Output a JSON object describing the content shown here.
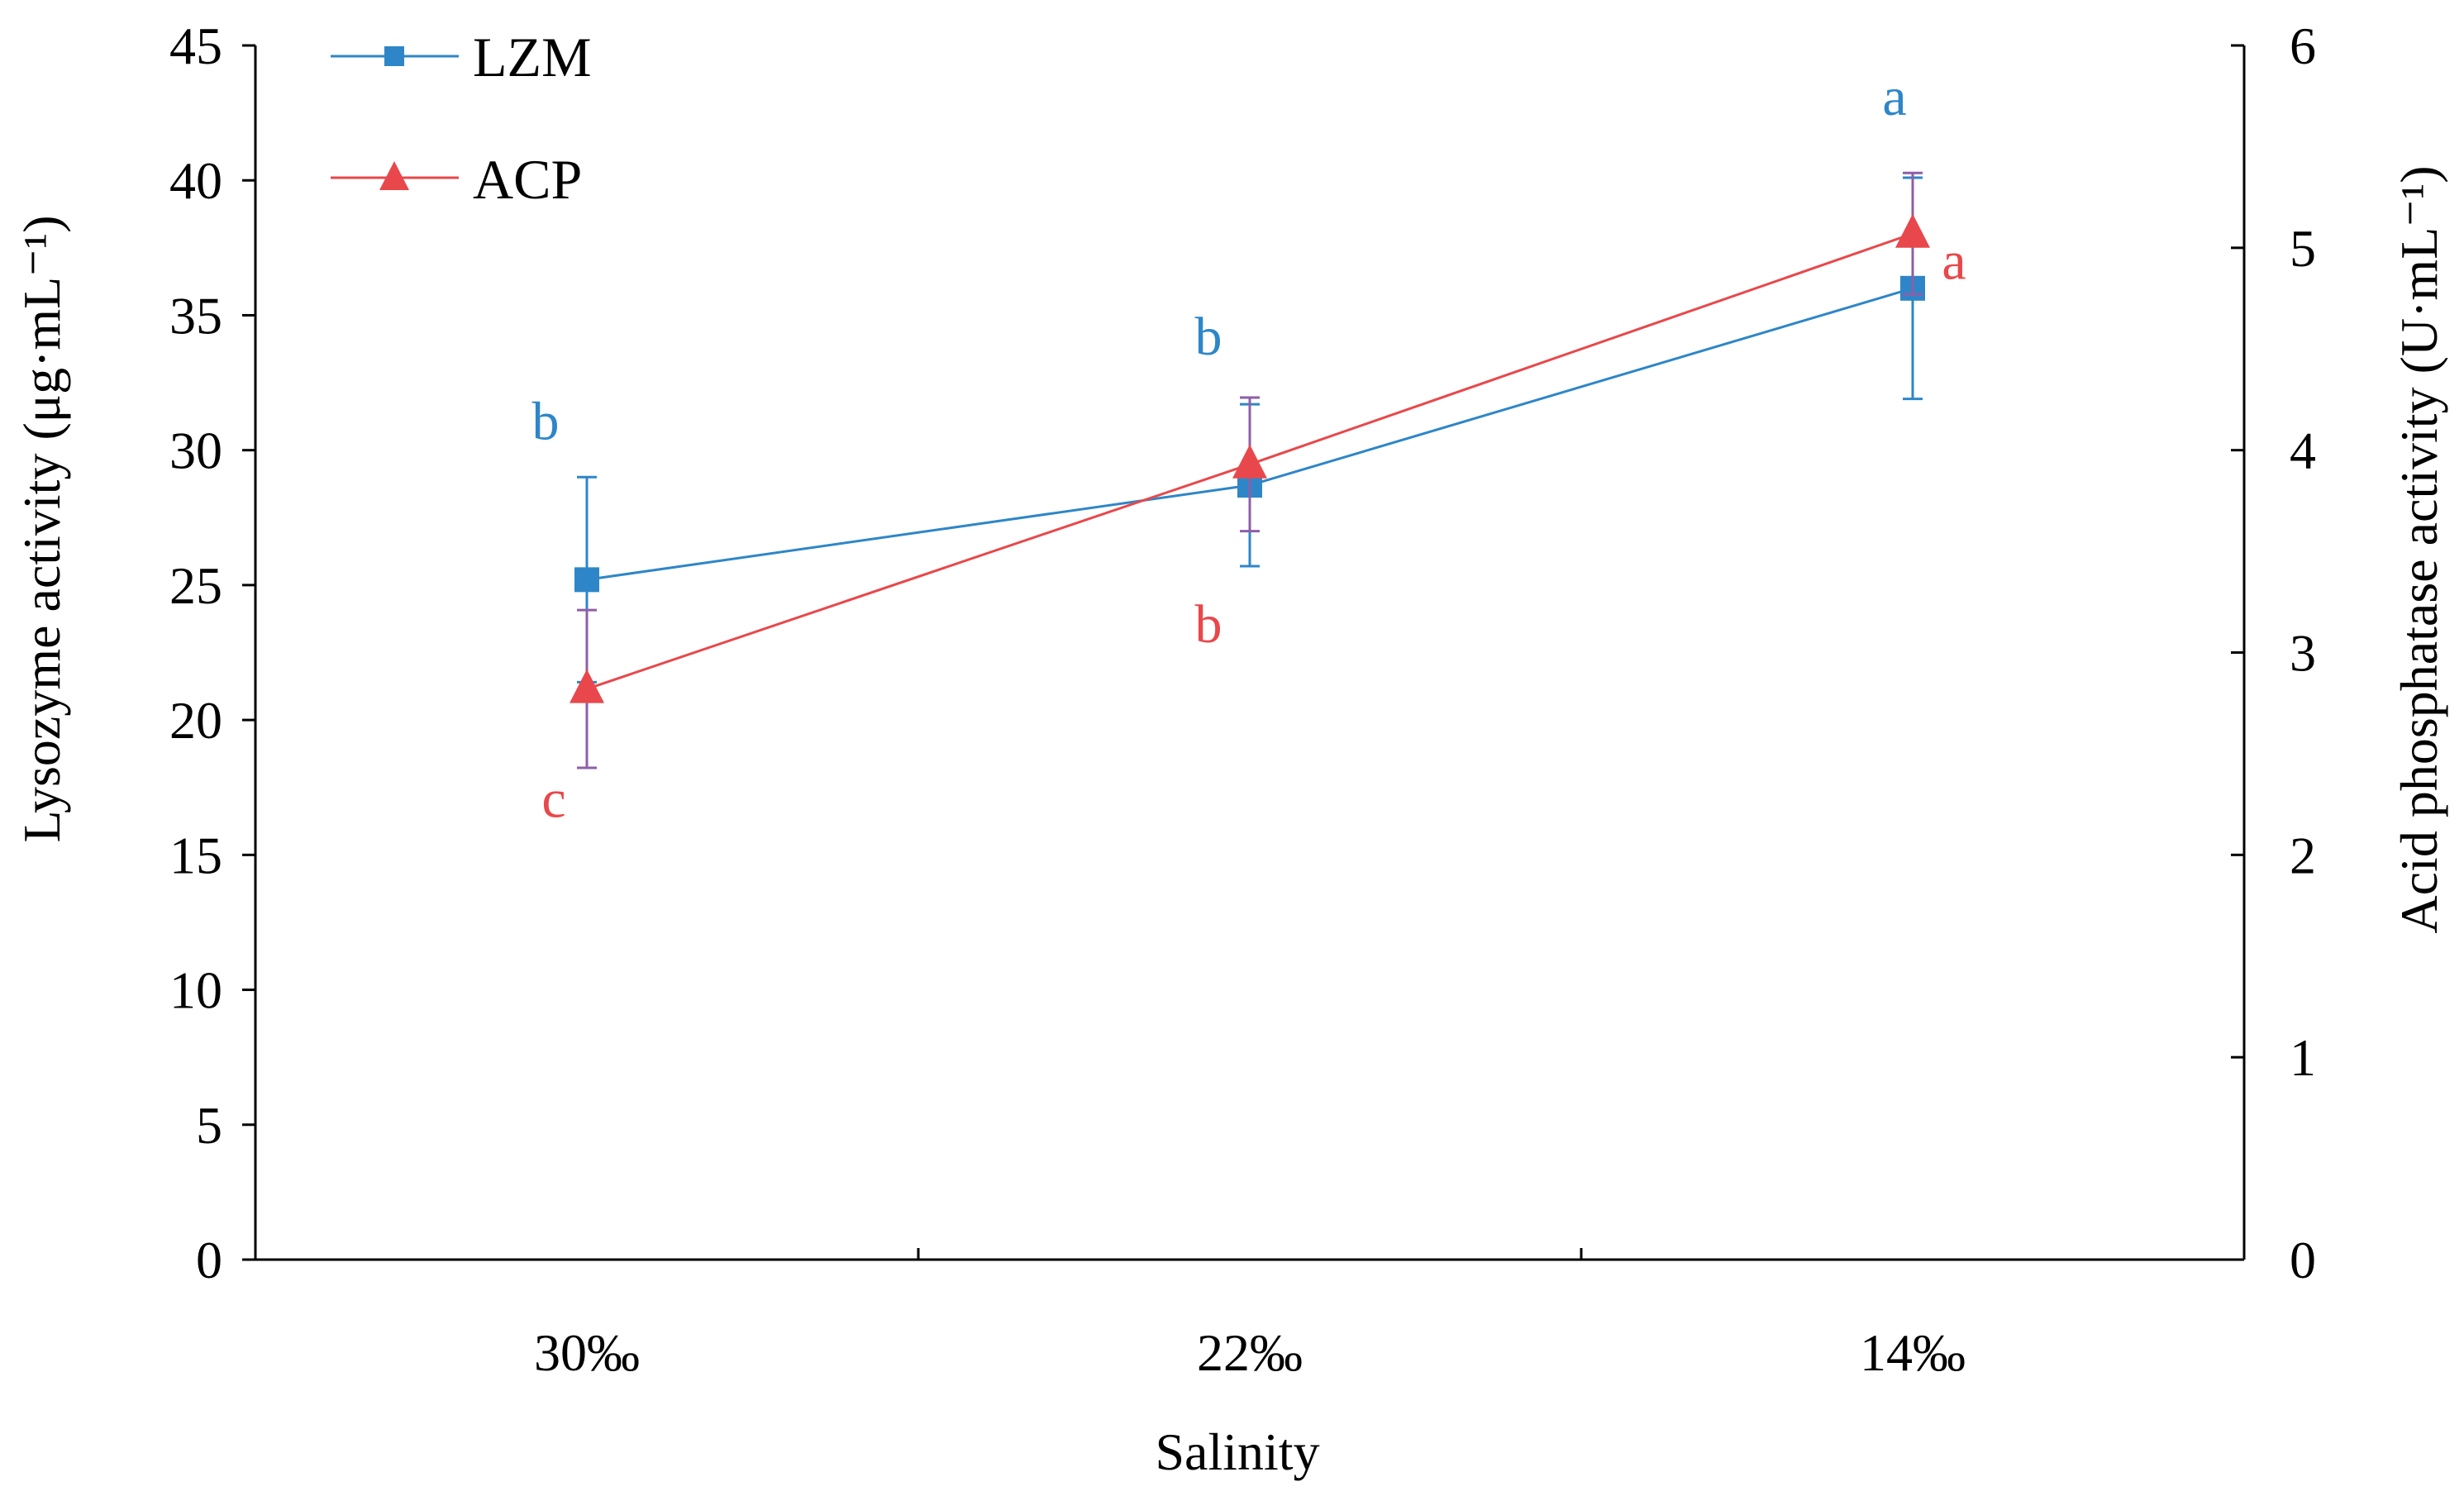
{
  "chart_data": {
    "type": "line",
    "title": "",
    "xlabel": "Salinity",
    "ylabel": "Lysozyme activity (μg·mL⁻¹)",
    "y2label": "Acid phosphatase activity (U·mL⁻¹)",
    "categories": [
      "30‰",
      "22‰",
      "14‰"
    ],
    "ylim": [
      0,
      45
    ],
    "y2lim": [
      0,
      6
    ],
    "yticks": [
      "0",
      "5",
      "10",
      "15",
      "20",
      "25",
      "30",
      "35",
      "40",
      "45"
    ],
    "y2ticks": [
      "0",
      "1",
      "2",
      "3",
      "4",
      "5",
      "6"
    ],
    "legend_position": "top-left",
    "series": [
      {
        "name": "LZM",
        "axis": "left",
        "color": "#2E86C8",
        "marker": "square",
        "values": [
          25.2,
          28.7,
          36.0
        ],
        "errors": [
          3.8,
          3.0,
          4.1
        ],
        "sig_labels": [
          "b",
          "b",
          "a"
        ]
      },
      {
        "name": "ACP",
        "axis": "right",
        "color": "#E8484B",
        "marker": "triangle",
        "values": [
          2.82,
          3.93,
          5.07
        ],
        "errors": [
          0.39,
          0.33,
          0.3
        ],
        "sig_labels": [
          "c",
          "b",
          "a"
        ]
      }
    ]
  }
}
